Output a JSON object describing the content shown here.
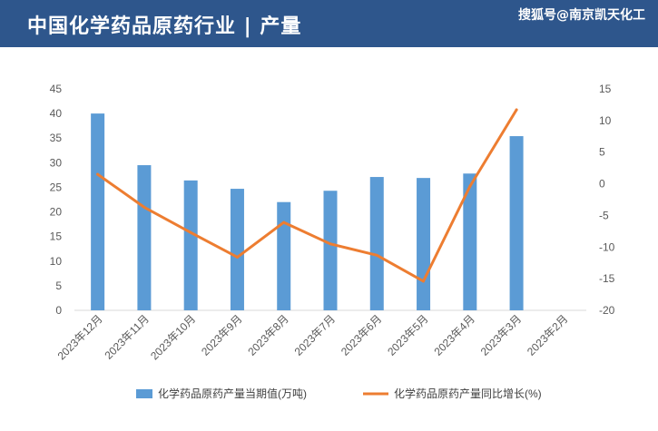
{
  "header": {
    "title": "中国化学药品原药行业 | 产量",
    "source": "搜狐号@南京凯天化工"
  },
  "colors": {
    "header_bg": "#2e568c",
    "bar": "#5b9bd5",
    "line": "#ed7d31",
    "grid": "#d9d9d9"
  },
  "chart_data": {
    "type": "bar",
    "title": "",
    "categories": [
      "2023年12月",
      "2023年11月",
      "2023年10月",
      "2023年9月",
      "2023年8月",
      "2023年7月",
      "2023年6月",
      "2023年5月",
      "2023年4月",
      "2023年3月",
      "2023年2月"
    ],
    "series": [
      {
        "name": "化学药品原药产量当期值(万吨)",
        "type": "bar",
        "axis": "left",
        "values": [
          40.0,
          29.5,
          26.4,
          24.7,
          22.0,
          24.3,
          27.1,
          26.9,
          27.8,
          35.4,
          null
        ]
      },
      {
        "name": "化学药品原药产量同比增长(%)",
        "type": "line",
        "axis": "right",
        "values": [
          1.5,
          -3.7,
          -7.7,
          -11.6,
          -6.1,
          -9.5,
          -11.3,
          -15.4,
          -0.4,
          11.7,
          null
        ]
      }
    ],
    "y_left": {
      "min": 0,
      "max": 45,
      "step": 5,
      "ticks": [
        "0",
        "5",
        "10",
        "15",
        "20",
        "25",
        "30",
        "35",
        "40",
        "45"
      ]
    },
    "y_right": {
      "min": -20,
      "max": 15,
      "step": 5,
      "ticks": [
        "-20",
        "-15",
        "-10",
        "-5",
        "0",
        "5",
        "10",
        "15"
      ]
    },
    "grid": false,
    "legend_position": "bottom"
  }
}
